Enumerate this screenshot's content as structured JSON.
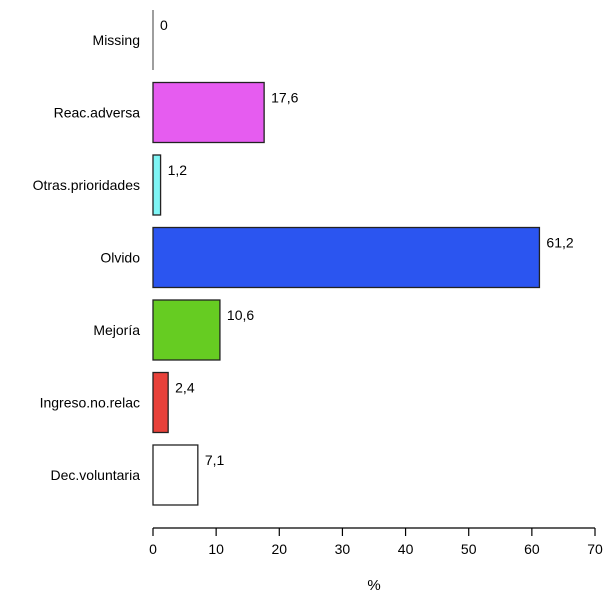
{
  "chart_data": {
    "type": "bar",
    "orientation": "horizontal",
    "categories": [
      "Missing",
      "Reac.adversa",
      "Otras.prioridades",
      "Olvido",
      "Mejoría",
      "Ingreso.no.relac",
      "Dec.voluntaria"
    ],
    "values": [
      0,
      17.6,
      1.2,
      61.2,
      10.6,
      2.4,
      7.1
    ],
    "value_labels": [
      "0",
      "17,6",
      "1,2",
      "61,2",
      "10,6",
      "2,4",
      "7,1"
    ],
    "colors": [
      "#9e9e9e",
      "#e65cf0",
      "#7ff5f5",
      "#2b55f0",
      "#66cc22",
      "#e8413a",
      "#ffffff"
    ],
    "xlabel": "%",
    "xlim": [
      0,
      70
    ],
    "xticks": [
      0,
      10,
      20,
      30,
      40,
      50,
      60,
      70
    ],
    "grid": false,
    "legend": "none"
  }
}
